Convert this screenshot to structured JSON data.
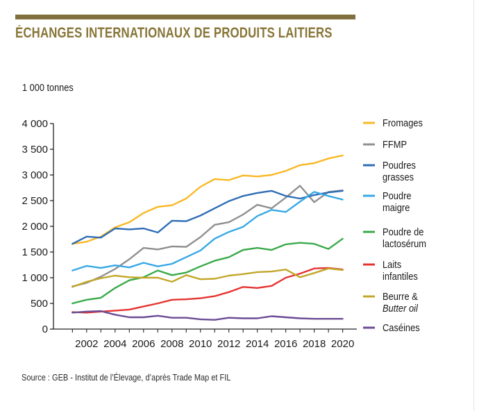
{
  "title": "ÉCHANGES INTERNATIONAUX DE PRODUITS LAITIERS",
  "source": "Source : GEB - Institut de l’Élevage, d’après Trade Map et FIL",
  "chart_data": {
    "type": "line",
    "title": "ÉCHANGES INTERNATIONAUX DE PRODUITS LAITIERS",
    "ylabel": "1 000 tonnes",
    "xlabel": "",
    "x": [
      2001,
      2002,
      2003,
      2004,
      2005,
      2006,
      2007,
      2008,
      2009,
      2010,
      2011,
      2012,
      2013,
      2014,
      2015,
      2016,
      2017,
      2018,
      2019,
      2020
    ],
    "xlim": [
      2000.3,
      2020.8
    ],
    "ylim": [
      0,
      4000
    ],
    "x_ticks": [
      2002,
      2004,
      2006,
      2008,
      2010,
      2012,
      2014,
      2016,
      2018,
      2020
    ],
    "x_tick_labels": [
      "2002",
      "2004",
      "2006",
      "2008",
      "2010",
      "2012",
      "2014",
      "2016",
      "2018",
      "2020"
    ],
    "y_ticks": [
      0,
      500,
      1000,
      1500,
      2000,
      2500,
      3000,
      3500,
      4000
    ],
    "y_tick_labels": [
      "0",
      "500",
      "1 000",
      "1 500",
      "2 000",
      "2 500",
      "3 000",
      "3 500",
      "4 000"
    ],
    "grid": false,
    "legend_position": "right",
    "series": [
      {
        "name": "Fromages",
        "color": "#f9b824",
        "values": [
          1660,
          1700,
          1800,
          1980,
          2080,
          2260,
          2380,
          2410,
          2540,
          2770,
          2920,
          2900,
          2990,
          2970,
          3000,
          3080,
          3190,
          3230,
          3320,
          3380
        ]
      },
      {
        "name": "FFMP",
        "color": "#8f8f8f",
        "values": [
          830,
          900,
          1020,
          1170,
          1360,
          1580,
          1550,
          1610,
          1600,
          1790,
          2030,
          2080,
          2230,
          2420,
          2350,
          2560,
          2790,
          2470,
          2670,
          2700
        ]
      },
      {
        "name": "Poudres grasses",
        "lines": [
          "Poudres",
          "grasses"
        ],
        "color": "#2f6db5",
        "values": [
          1660,
          1800,
          1780,
          1960,
          1940,
          1960,
          1880,
          2110,
          2100,
          2210,
          2350,
          2490,
          2590,
          2650,
          2690,
          2590,
          2540,
          2610,
          2660,
          2690
        ]
      },
      {
        "name": "Poudre maigre",
        "lines": [
          "Poudre",
          "maigre"
        ],
        "color": "#36a8e6",
        "values": [
          1140,
          1230,
          1190,
          1240,
          1200,
          1290,
          1220,
          1270,
          1400,
          1530,
          1760,
          1890,
          1990,
          2200,
          2320,
          2280,
          2480,
          2670,
          2590,
          2520
        ]
      },
      {
        "name": "Poudre de lactosérum",
        "lines": [
          "Poudre de",
          "lactosérum"
        ],
        "color": "#3aaa4a",
        "values": [
          500,
          570,
          610,
          800,
          950,
          1010,
          1140,
          1050,
          1100,
          1220,
          1330,
          1400,
          1540,
          1580,
          1540,
          1650,
          1680,
          1660,
          1560,
          1760
        ]
      },
      {
        "name": "Laits infantiles",
        "lines": [
          "Laits",
          "infantiles"
        ],
        "color": "#e53330",
        "values": [
          330,
          320,
          340,
          360,
          380,
          440,
          500,
          570,
          580,
          600,
          640,
          720,
          820,
          800,
          840,
          1000,
          1080,
          1180,
          1190,
          1160
        ]
      },
      {
        "name": "Beurre & Butter oil",
        "lines": [
          "Beurre &",
          "Butter oil"
        ],
        "italic_line": 1,
        "color": "#c2a72a",
        "values": [
          820,
          920,
          990,
          1040,
          1010,
          1000,
          1000,
          920,
          1050,
          970,
          980,
          1040,
          1070,
          1110,
          1120,
          1160,
          1010,
          1090,
          1180,
          1150
        ]
      },
      {
        "name": "Caséines",
        "color": "#6b4b94",
        "values": [
          320,
          340,
          350,
          280,
          230,
          230,
          260,
          220,
          220,
          190,
          180,
          220,
          210,
          210,
          250,
          230,
          210,
          200,
          200,
          200
        ]
      }
    ]
  }
}
